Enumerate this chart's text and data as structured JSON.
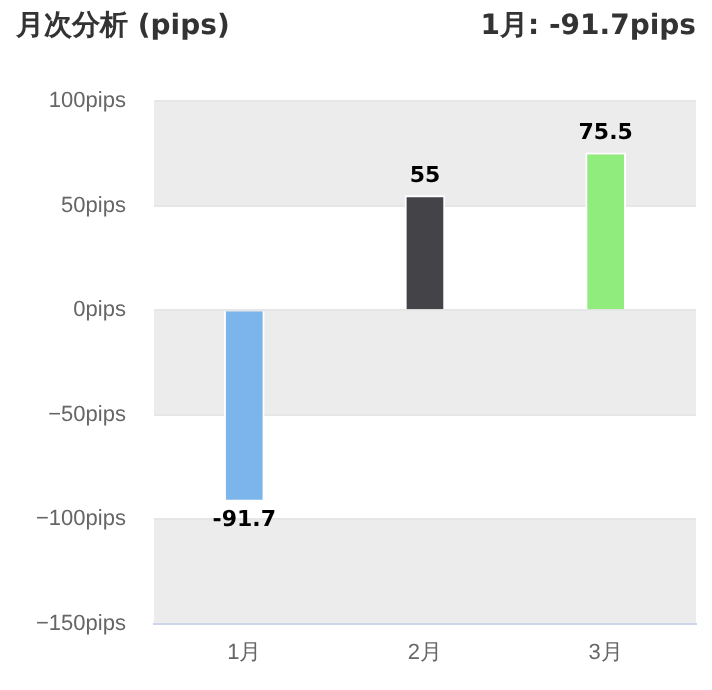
{
  "chart_data": {
    "type": "bar",
    "title": "月次分析 (pips)",
    "annotations": [
      "1月: -91.7pips"
    ],
    "categories": [
      "1月",
      "2月",
      "3月"
    ],
    "values": [
      -91.7,
      55,
      75.5
    ],
    "colors": [
      "#7cb5ec",
      "#434348",
      "#90ed7d"
    ],
    "ylim": [
      -150,
      100
    ],
    "yticks": [
      {
        "value": -150,
        "label": "−150pips"
      },
      {
        "value": -100,
        "label": "−100pips"
      },
      {
        "value": -50,
        "label": "−50pips"
      },
      {
        "value": 0,
        "label": "0pips"
      },
      {
        "value": 50,
        "label": "50pips"
      },
      {
        "value": 100,
        "label": "100pips"
      }
    ],
    "bands": [
      {
        "axis": "y",
        "from": -150,
        "to": -100,
        "color": "#ececec"
      },
      {
        "axis": "y",
        "from": -50,
        "to": 0,
        "color": "#ececec"
      },
      {
        "axis": "y",
        "from": 50,
        "to": 100,
        "color": "#ececec"
      }
    ],
    "grid": "y",
    "data_labels": true,
    "legend": false
  }
}
